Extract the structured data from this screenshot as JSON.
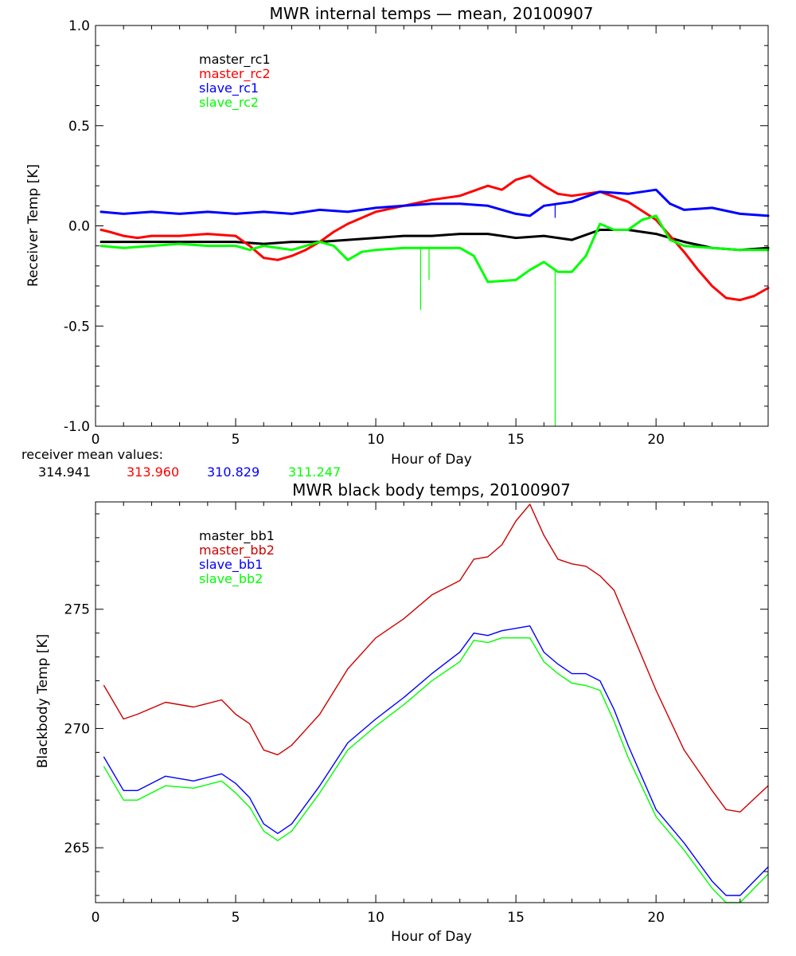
{
  "chart_data": [
    {
      "type": "line",
      "title": "MWR internal temps — mean, 20100907",
      "xlabel": "Hour of Day",
      "ylabel": "Receiver Temp [K]",
      "xlim": [
        0,
        24
      ],
      "ylim": [
        -1.0,
        1.0
      ],
      "xticks": [
        0,
        5,
        10,
        15,
        20
      ],
      "xtick_labels": [
        "0",
        "5",
        "10",
        "15",
        "20"
      ],
      "yticks": [
        -1.0,
        -0.5,
        0.0,
        0.5,
        1.0
      ],
      "ytick_labels": [
        "-1.0",
        "-0.5",
        "0.0",
        "0.5",
        "1.0"
      ],
      "grid": false,
      "legend_position": "top-left",
      "series": [
        {
          "name": "master_rc1",
          "color": "#000000",
          "x": [
            0.2,
            1,
            2,
            3,
            4,
            5,
            6,
            7,
            8,
            9,
            10,
            11,
            12,
            13,
            14,
            15,
            16,
            17,
            18,
            19,
            20,
            21,
            22,
            23,
            24
          ],
          "y": [
            -0.08,
            -0.08,
            -0.08,
            -0.08,
            -0.08,
            -0.08,
            -0.09,
            -0.08,
            -0.08,
            -0.07,
            -0.06,
            -0.05,
            -0.05,
            -0.04,
            -0.04,
            -0.06,
            -0.05,
            -0.07,
            -0.02,
            -0.02,
            -0.04,
            -0.08,
            -0.11,
            -0.12,
            -0.11
          ]
        },
        {
          "name": "master_rc2",
          "color": "#ff0000",
          "x": [
            0.2,
            0.5,
            1,
            1.5,
            2,
            3,
            4,
            5,
            5.5,
            6,
            6.5,
            7,
            7.5,
            8,
            8.5,
            9,
            10,
            11,
            12,
            13,
            14,
            14.5,
            15,
            15.5,
            16,
            16.5,
            17,
            17.5,
            18,
            19,
            20,
            20.5,
            21,
            21.5,
            22,
            22.5,
            23,
            23.5,
            24
          ],
          "y": [
            -0.02,
            -0.03,
            -0.05,
            -0.06,
            -0.05,
            -0.05,
            -0.04,
            -0.05,
            -0.1,
            -0.16,
            -0.17,
            -0.15,
            -0.12,
            -0.08,
            -0.03,
            0.01,
            0.07,
            0.1,
            0.13,
            0.15,
            0.2,
            0.18,
            0.23,
            0.25,
            0.2,
            0.16,
            0.15,
            0.16,
            0.17,
            0.12,
            0.03,
            -0.05,
            -0.13,
            -0.22,
            -0.3,
            -0.36,
            -0.37,
            -0.35,
            -0.31
          ]
        },
        {
          "name": "slave_rc1",
          "color": "#0000ff",
          "x": [
            0.2,
            1,
            2,
            3,
            4,
            5,
            6,
            7,
            8,
            9,
            10,
            11,
            12,
            13,
            14,
            15,
            15.5,
            16,
            17,
            18,
            19,
            20,
            20.5,
            21,
            22,
            23,
            24
          ],
          "y": [
            0.07,
            0.06,
            0.07,
            0.06,
            0.07,
            0.06,
            0.07,
            0.06,
            0.08,
            0.07,
            0.09,
            0.1,
            0.11,
            0.11,
            0.1,
            0.06,
            0.05,
            0.1,
            0.12,
            0.17,
            0.16,
            0.18,
            0.11,
            0.08,
            0.09,
            0.06,
            0.05
          ]
        },
        {
          "name": "slave_rc2",
          "color": "#00ff00",
          "x": [
            0.2,
            1,
            2,
            3,
            4,
            5,
            5.5,
            6,
            7,
            8,
            8.5,
            9,
            9.5,
            10,
            11,
            12,
            13,
            13.5,
            14,
            15,
            15.5,
            16,
            16.5,
            17,
            17.5,
            18,
            18.5,
            19,
            19.5,
            20,
            20.5,
            21,
            22,
            23,
            24
          ],
          "y": [
            -0.1,
            -0.11,
            -0.1,
            -0.09,
            -0.1,
            -0.1,
            -0.12,
            -0.1,
            -0.12,
            -0.08,
            -0.1,
            -0.17,
            -0.13,
            -0.12,
            -0.11,
            -0.11,
            -0.11,
            -0.15,
            -0.28,
            -0.27,
            -0.22,
            -0.18,
            -0.23,
            -0.23,
            -0.15,
            0.01,
            -0.02,
            -0.02,
            0.03,
            0.05,
            -0.07,
            -0.1,
            -0.11,
            -0.12,
            -0.12
          ]
        }
      ],
      "spikes": [
        {
          "series": "slave_rc2",
          "x": 11.6,
          "y_min": -0.42
        },
        {
          "series": "slave_rc2",
          "x": 11.9,
          "y_min": -0.27
        },
        {
          "series": "slave_rc2",
          "x": 16.4,
          "y_min": -1.0
        },
        {
          "series": "slave_rc1",
          "x": 16.4,
          "y_min": 0.04
        }
      ]
    },
    {
      "type": "line",
      "title": "MWR black body temps, 20100907",
      "xlabel": "Hour of Day",
      "ylabel": "Blackbody Temp [K]",
      "xlim": [
        0,
        24
      ],
      "ylim": [
        262.7,
        279.5
      ],
      "xticks": [
        0,
        5,
        10,
        15,
        20
      ],
      "xtick_labels": [
        "0",
        "5",
        "10",
        "15",
        "20"
      ],
      "yticks": [
        265,
        270,
        275
      ],
      "ytick_labels": [
        "265",
        "270",
        "275"
      ],
      "grid": false,
      "legend_position": "top-left",
      "series": [
        {
          "name": "master_bb1",
          "color": "#000000",
          "x": [],
          "y": []
        },
        {
          "name": "master_bb2",
          "color": "#cc0000",
          "x": [
            0.3,
            1,
            1.5,
            2.5,
            3.5,
            4.5,
            5,
            5.5,
            6,
            6.5,
            7,
            8,
            9,
            10,
            11,
            12,
            13,
            13.5,
            14,
            14.5,
            15,
            15.5,
            16,
            16.5,
            17,
            17.5,
            18,
            18.5,
            19,
            20,
            21,
            22,
            22.5,
            23,
            24
          ],
          "y": [
            271.8,
            270.4,
            270.6,
            271.1,
            270.9,
            271.2,
            270.6,
            270.2,
            269.1,
            268.9,
            269.3,
            270.6,
            272.5,
            273.8,
            274.6,
            275.6,
            276.2,
            277.1,
            277.2,
            277.7,
            278.7,
            279.4,
            278.1,
            277.1,
            276.9,
            276.8,
            276.4,
            275.8,
            274.4,
            271.6,
            269.1,
            267.4,
            266.6,
            266.5,
            267.6
          ]
        },
        {
          "name": "slave_bb1",
          "color": "#0000ff",
          "x": [
            0.3,
            1,
            1.5,
            2.5,
            3.5,
            4.5,
            5,
            5.5,
            6,
            6.5,
            7,
            8,
            9,
            10,
            11,
            12,
            13,
            13.5,
            14,
            14.5,
            15,
            15.5,
            16,
            16.5,
            17,
            17.5,
            18,
            18.5,
            19,
            20,
            21,
            22,
            22.5,
            23,
            24
          ],
          "y": [
            268.8,
            267.4,
            267.4,
            268.0,
            267.8,
            268.1,
            267.7,
            267.1,
            266.0,
            265.6,
            266.0,
            267.6,
            269.4,
            270.4,
            271.3,
            272.3,
            273.2,
            274.0,
            273.9,
            274.1,
            274.2,
            274.3,
            273.2,
            272.7,
            272.3,
            272.3,
            272.0,
            270.8,
            269.3,
            266.6,
            265.2,
            263.6,
            263.0,
            263.0,
            264.2
          ]
        },
        {
          "name": "slave_bb2",
          "color": "#00ff00",
          "x": [
            0.3,
            1,
            1.5,
            2.5,
            3.5,
            4.5,
            5,
            5.5,
            6,
            6.5,
            7,
            8,
            9,
            10,
            11,
            12,
            13,
            13.5,
            14,
            14.5,
            15,
            15.5,
            16,
            16.5,
            17,
            17.5,
            18,
            18.5,
            19,
            20,
            21,
            22,
            22.5,
            23,
            24
          ],
          "y": [
            268.4,
            267.0,
            267.0,
            267.6,
            267.5,
            267.8,
            267.3,
            266.7,
            265.7,
            265.3,
            265.7,
            267.3,
            269.1,
            270.1,
            271.0,
            272.0,
            272.8,
            273.7,
            273.6,
            273.8,
            273.8,
            273.8,
            272.8,
            272.3,
            271.9,
            271.8,
            271.6,
            270.3,
            268.8,
            266.3,
            264.9,
            263.3,
            262.7,
            262.7,
            263.9
          ]
        }
      ]
    }
  ],
  "receiver_means": {
    "label": "receiver mean values:",
    "values": [
      {
        "text": "314.941",
        "color": "#000000"
      },
      {
        "text": "313.960",
        "color": "#ff0000"
      },
      {
        "text": "310.829",
        "color": "#0000ff"
      },
      {
        "text": "311.247",
        "color": "#00ff00"
      }
    ]
  }
}
